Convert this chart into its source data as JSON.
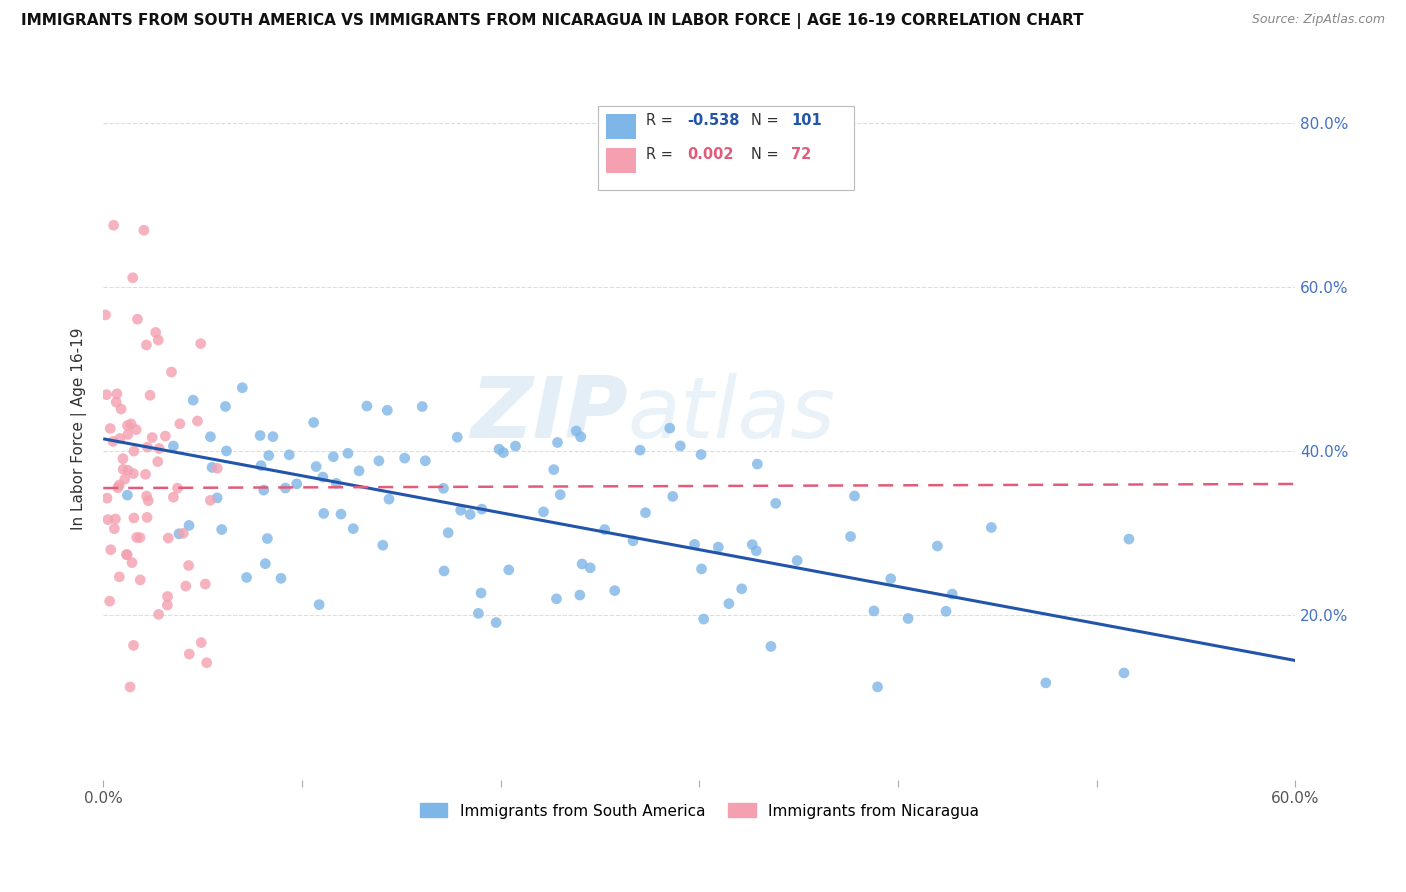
{
  "title": "IMMIGRANTS FROM SOUTH AMERICA VS IMMIGRANTS FROM NICARAGUA IN LABOR FORCE | AGE 16-19 CORRELATION CHART",
  "source": "Source: ZipAtlas.com",
  "ylabel": "In Labor Force | Age 16-19",
  "xlim": [
    0.0,
    0.6
  ],
  "ylim": [
    0.0,
    0.855
  ],
  "color_south_america": "#7EB6E8",
  "color_nicaragua": "#F4A0B0",
  "color_line_sa": "#2255AA",
  "color_line_nic": "#E05C7A",
  "watermark_zip": "ZIP",
  "watermark_atlas": "atlas",
  "sa_line_x0": 0.0,
  "sa_line_y0": 0.415,
  "sa_line_x1": 0.6,
  "sa_line_y1": 0.145,
  "nic_line_x0": 0.0,
  "nic_line_y0": 0.355,
  "nic_line_x1": 0.6,
  "nic_line_y1": 0.36
}
